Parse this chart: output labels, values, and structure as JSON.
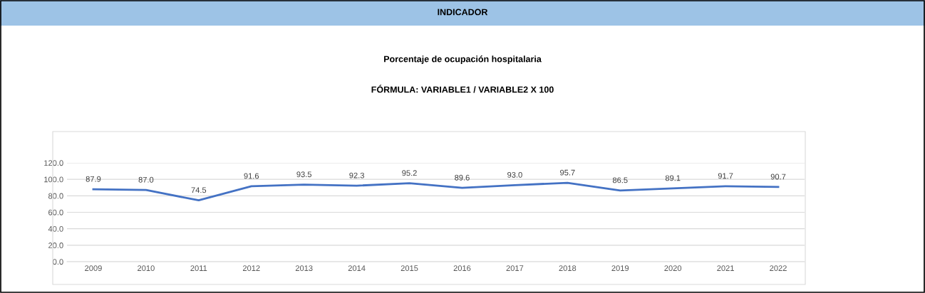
{
  "chart_data": {
    "type": "line",
    "title": "INDICADOR",
    "subtitle": "Porcentaje de ocupación hospitalaria",
    "annotations": [
      "FÓRMULA: VARIABLE1 / VARIABLE2 X 100"
    ],
    "categories": [
      "2009",
      "2010",
      "2011",
      "2012",
      "2013",
      "2014",
      "2015",
      "2016",
      "2017",
      "2018",
      "2019",
      "2020",
      "2021",
      "2022"
    ],
    "series": [
      {
        "color": "#4472c4",
        "values": [
          87.9,
          87.0,
          74.5,
          91.6,
          93.5,
          92.3,
          95.2,
          89.6,
          93.0,
          95.7,
          86.5,
          89.1,
          91.7,
          90.7
        ],
        "value_labels": [
          "87.9",
          "87.0",
          "74.5",
          "91.6",
          "93.5",
          "92.3",
          "95.2",
          "89.6",
          "93.0",
          "95.7",
          "86.5",
          "89.1",
          "91.7",
          "90.7"
        ]
      }
    ],
    "ylim": [
      0,
      120
    ],
    "yticks": [
      {
        "value": 0,
        "label": "0.0"
      },
      {
        "value": 20,
        "label": "20.0"
      },
      {
        "value": 40,
        "label": "40.0"
      },
      {
        "value": 60,
        "label": "60.0"
      },
      {
        "value": 80,
        "label": "80.0"
      },
      {
        "value": 100,
        "label": "100.0"
      },
      {
        "value": 120,
        "label": "120.0"
      }
    ],
    "grid": "y",
    "legend": false,
    "marker": "none",
    "line_style": "solid"
  }
}
